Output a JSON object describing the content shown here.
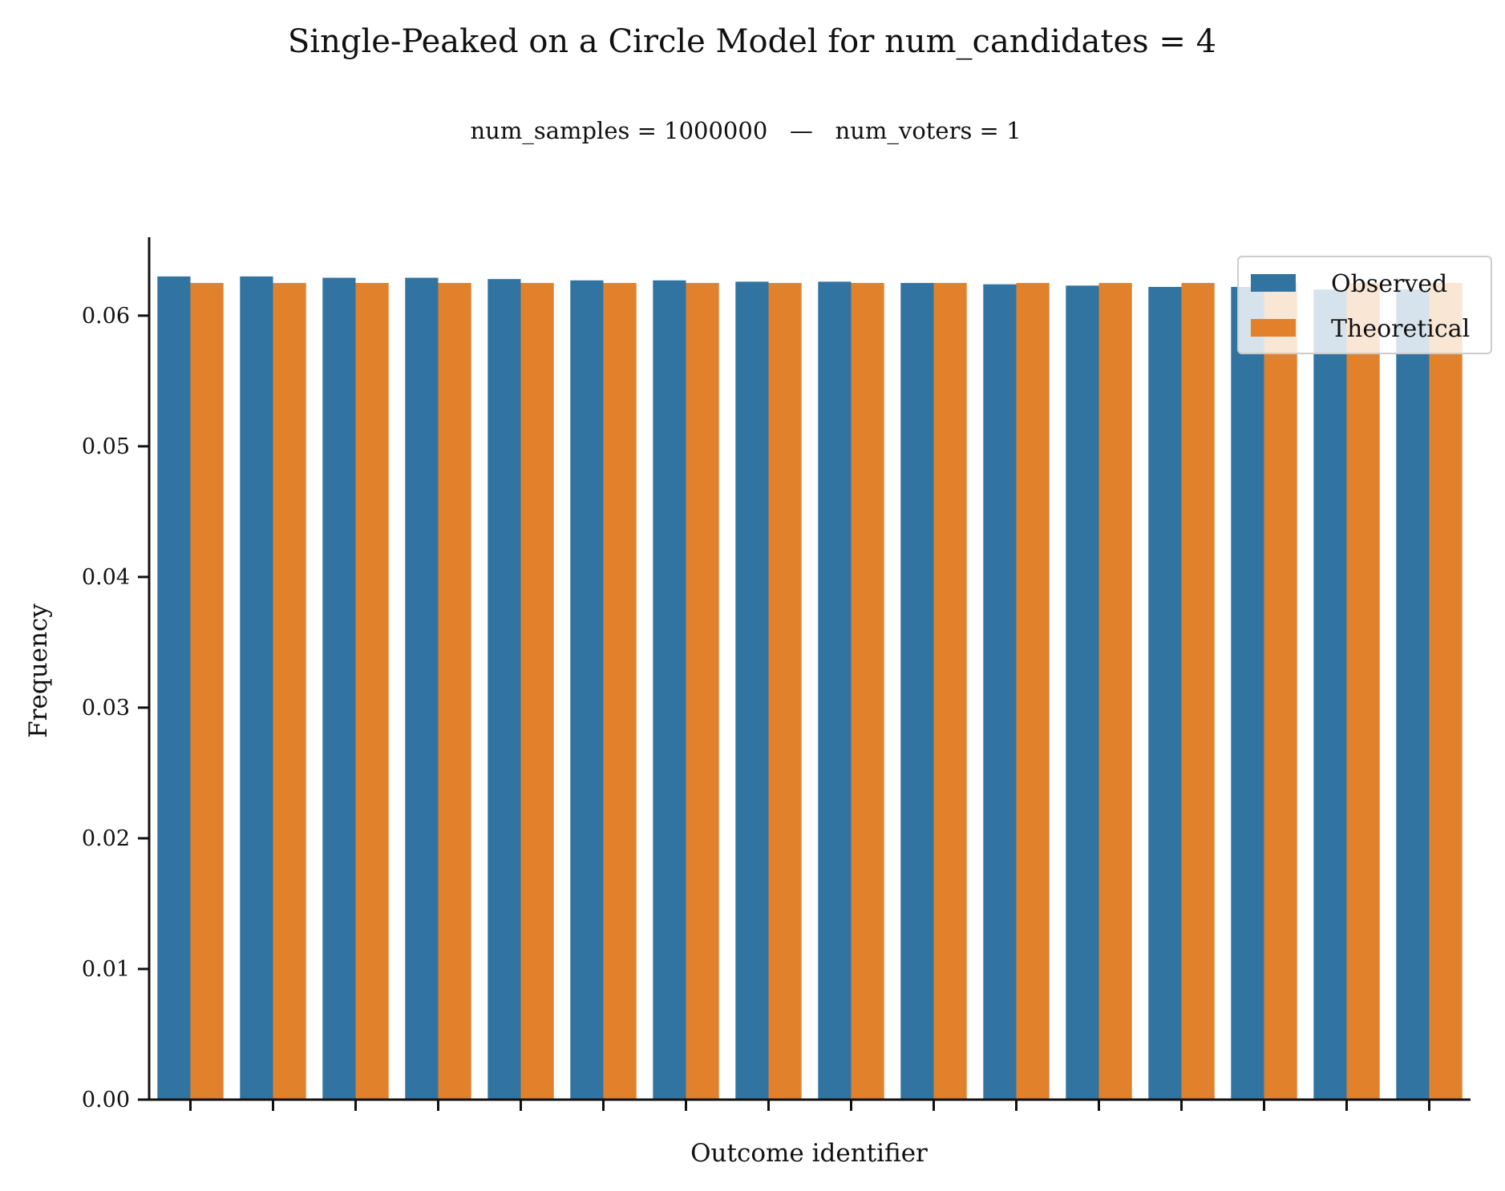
{
  "chart_data": {
    "type": "bar",
    "title": "Single-Peaked on a Circle Model for num_candidates = 4",
    "subtitle": "num_samples = 1000000   —   num_voters = 1",
    "xlabel": "Outcome identifier",
    "ylabel": "Frequency",
    "ylim": [
      0,
      0.066
    ],
    "yticks": [
      0.0,
      0.01,
      0.02,
      0.03,
      0.04,
      0.05,
      0.06
    ],
    "ytick_labels": [
      "0.00",
      "0.01",
      "0.02",
      "0.03",
      "0.04",
      "0.05",
      "0.06"
    ],
    "num_categories": 16,
    "x_tick_labels_shown": false,
    "grid": false,
    "legend_position": "top-right",
    "series": [
      {
        "name": "Observed",
        "color": "#3274a1",
        "values": [
          0.063,
          0.063,
          0.0629,
          0.0629,
          0.0628,
          0.0627,
          0.0627,
          0.0626,
          0.0626,
          0.0625,
          0.0624,
          0.0623,
          0.0622,
          0.0622,
          0.062,
          0.062
        ]
      },
      {
        "name": "Theoretical",
        "color": "#e1812c",
        "values": [
          0.0625,
          0.0625,
          0.0625,
          0.0625,
          0.0625,
          0.0625,
          0.0625,
          0.0625,
          0.0625,
          0.0625,
          0.0625,
          0.0625,
          0.0625,
          0.0625,
          0.0625,
          0.0625
        ]
      }
    ]
  }
}
